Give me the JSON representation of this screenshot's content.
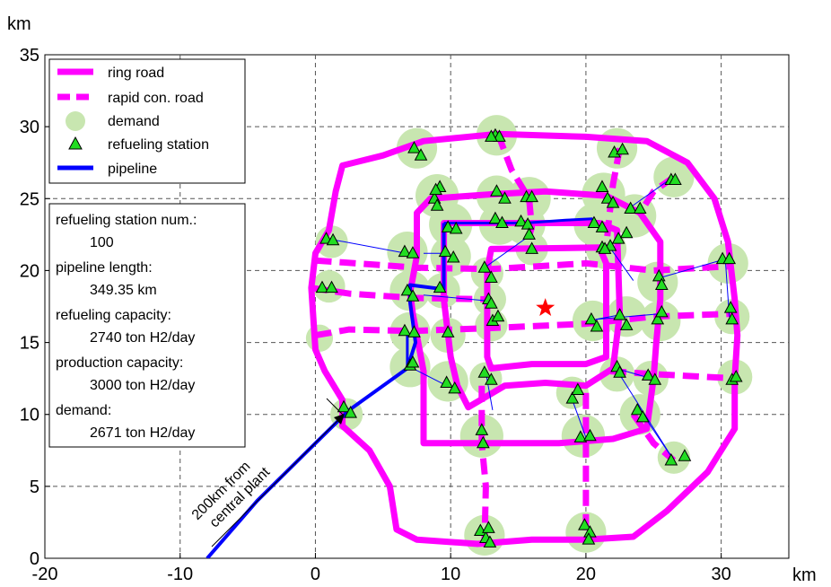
{
  "chart_data": {
    "type": "map-network",
    "xlim": [
      -20,
      35
    ],
    "ylim": [
      0,
      35
    ],
    "x_ticks": [
      -20,
      -10,
      0,
      10,
      20,
      30
    ],
    "y_ticks": [
      0,
      5,
      10,
      15,
      20,
      25,
      30,
      35
    ],
    "x_unit": "km",
    "y_unit": "km",
    "grid": true,
    "legend": {
      "placement": "top-left",
      "entries": [
        {
          "label": "ring road",
          "style": "solid-magenta"
        },
        {
          "label": "rapid con. road",
          "style": "dashed-magenta"
        },
        {
          "label": "demand",
          "style": "green-circle"
        },
        {
          "label": "refueling station",
          "style": "green-triangle"
        },
        {
          "label": "pipeline",
          "style": "blue-line"
        }
      ]
    },
    "info_box": [
      {
        "label": "refueling station num.:",
        "value": "100"
      },
      {
        "label": "pipeline length:",
        "value": "349.35 km"
      },
      {
        "label": "refueling capacity:",
        "value": "2740 ton H2/day"
      },
      {
        "label": "production capacity:",
        "value": "3000 ton H2/day"
      },
      {
        "label": "demand:",
        "value": "2671 ton H2/day"
      }
    ],
    "annotation": {
      "lines": [
        "200km from",
        "central plant"
      ]
    },
    "central_point": {
      "x": 17,
      "y": 17.4,
      "color": "#ff0000"
    },
    "colors": {
      "road": "#ff00ff",
      "demand": "#c8e6b0",
      "station": "#22dd22",
      "pipeline": "#0000ff",
      "grid": "#555555",
      "star": "#ff0000"
    },
    "ring_roads": [
      [
        [
          0,
          21.2
        ],
        [
          -0.3,
          18.8
        ],
        [
          0,
          14.5
        ],
        [
          0.7,
          13
        ],
        [
          2,
          11
        ],
        [
          2,
          9.2
        ],
        [
          4,
          7.5
        ],
        [
          5.5,
          5
        ],
        [
          6,
          2
        ],
        [
          7.5,
          1.3
        ],
        [
          12,
          1
        ],
        [
          16,
          1.3
        ],
        [
          20,
          1.3
        ],
        [
          23.5,
          1.5
        ],
        [
          26,
          3.3
        ],
        [
          29,
          6
        ],
        [
          31,
          9
        ],
        [
          31,
          12.5
        ],
        [
          31.2,
          15.5
        ],
        [
          31,
          18
        ],
        [
          30.5,
          22
        ],
        [
          29.5,
          25
        ],
        [
          27.5,
          27.5
        ],
        [
          24.5,
          29
        ],
        [
          20,
          29.3
        ],
        [
          13.5,
          29.5
        ],
        [
          8,
          29
        ],
        [
          5,
          28
        ],
        [
          2,
          27.3
        ],
        [
          1.5,
          25.5
        ],
        [
          1,
          22.8
        ],
        [
          0,
          21.2
        ]
      ],
      [
        [
          13,
          25.3
        ],
        [
          17,
          25.5
        ],
        [
          21.5,
          25.2
        ],
        [
          24,
          24
        ],
        [
          25.5,
          22
        ],
        [
          25.5,
          18
        ],
        [
          25.2,
          15
        ],
        [
          25,
          12.5
        ],
        [
          24.5,
          9
        ],
        [
          22,
          8.3
        ],
        [
          18,
          8
        ],
        [
          15,
          8
        ],
        [
          12,
          8
        ],
        [
          8,
          8
        ],
        [
          8,
          13
        ],
        [
          7.2,
          17
        ],
        [
          7,
          18.5
        ],
        [
          7.5,
          21
        ],
        [
          7.5,
          24
        ],
        [
          8.5,
          25
        ],
        [
          13,
          25.3
        ]
      ],
      [
        [
          9.5,
          23.3
        ],
        [
          17,
          23.3
        ],
        [
          21,
          23.3
        ],
        [
          22.3,
          22.8
        ],
        [
          22.5,
          17
        ],
        [
          22,
          13.2
        ],
        [
          20,
          12
        ],
        [
          17,
          12.2
        ],
        [
          14,
          12
        ],
        [
          11.3,
          10.5
        ],
        [
          10.5,
          12
        ],
        [
          10,
          14
        ],
        [
          9.5,
          18
        ],
        [
          9.5,
          23.3
        ]
      ],
      [
        [
          13,
          21.5
        ],
        [
          21,
          21.6
        ],
        [
          21.5,
          20.5
        ],
        [
          21.5,
          14
        ],
        [
          20,
          13.5
        ],
        [
          16,
          13.5
        ],
        [
          13,
          13.2
        ],
        [
          12.7,
          14
        ],
        [
          12.7,
          20
        ],
        [
          13,
          21.5
        ]
      ]
    ],
    "rapid_roads": [
      [
        [
          0,
          20.7
        ],
        [
          7.5,
          20.2
        ],
        [
          13,
          20.1
        ],
        [
          20,
          20.5
        ],
        [
          25,
          20
        ],
        [
          30.8,
          20.3
        ]
      ],
      [
        [
          -0.3,
          18.8
        ],
        [
          2.5,
          18.4
        ],
        [
          7.2,
          18.1
        ],
        [
          12.8,
          18
        ]
      ],
      [
        [
          0,
          15.5
        ],
        [
          2.5,
          15.9
        ],
        [
          7.2,
          15.8
        ],
        [
          13,
          16
        ],
        [
          20,
          16.3
        ],
        [
          25,
          16.8
        ],
        [
          31,
          17
        ]
      ],
      [
        [
          21.8,
          13
        ],
        [
          25,
          12.8
        ],
        [
          31,
          12.5
        ]
      ],
      [
        [
          13.5,
          29.5
        ],
        [
          14.5,
          27
        ],
        [
          15.8,
          25
        ],
        [
          16,
          23
        ],
        [
          15.5,
          21.5
        ]
      ],
      [
        [
          22.5,
          28.5
        ],
        [
          22,
          26
        ],
        [
          21.7,
          23.5
        ],
        [
          21.5,
          21.6
        ]
      ],
      [
        [
          26.5,
          26.5
        ],
        [
          25,
          25.5
        ],
        [
          24,
          24
        ]
      ],
      [
        [
          23.5,
          10
        ],
        [
          25,
          8
        ],
        [
          26.5,
          6.8
        ]
      ],
      [
        [
          20,
          11.5
        ],
        [
          20,
          8
        ],
        [
          20,
          4
        ],
        [
          20,
          1.5
        ]
      ],
      [
        [
          12.3,
          12
        ],
        [
          12.3,
          8
        ],
        [
          12.6,
          5
        ],
        [
          12.5,
          1
        ]
      ]
    ],
    "pipeline": [
      [
        [
          -8,
          0
        ],
        [
          -4.3,
          4
        ],
        [
          0,
          8
        ],
        [
          2.5,
          10.3
        ],
        [
          6.8,
          13.2
        ],
        [
          7.4,
          15
        ],
        [
          7,
          17.8
        ],
        [
          7,
          19
        ],
        [
          9.5,
          18.7
        ],
        [
          9.5,
          23.3
        ]
      ],
      [
        [
          9.5,
          23.3
        ],
        [
          15.5,
          23.3
        ],
        [
          18.5,
          23.5
        ],
        [
          20.5,
          23.6
        ]
      ],
      [
        [
          6.8,
          13.2
        ],
        [
          6.8,
          15.6
        ]
      ]
    ],
    "connector_links": [
      [
        [
          1,
          22.2
        ],
        [
          6.7,
          21.2
        ]
      ],
      [
        [
          8,
          18.3
        ],
        [
          12.7,
          17.9
        ]
      ],
      [
        [
          7.2,
          13.2
        ],
        [
          9.7,
          12
        ]
      ],
      [
        [
          20.7,
          16.6
        ],
        [
          25.6,
          17
        ]
      ],
      [
        [
          23.3,
          24.4
        ],
        [
          26.3,
          26.4
        ]
      ],
      [
        [
          21.7,
          21.7
        ],
        [
          23.5,
          19.3
        ]
      ],
      [
        [
          22.2,
          13.2
        ],
        [
          24.8,
          12.5
        ]
      ],
      [
        [
          22.2,
          13.2
        ],
        [
          26.5,
          6.8
        ]
      ],
      [
        [
          20.7,
          16.6
        ],
        [
          22.4,
          16.9
        ]
      ],
      [
        [
          12.5,
          20.2
        ],
        [
          15.8,
          22.4
        ]
      ],
      [
        [
          30.3,
          20.8
        ],
        [
          30.6,
          16.8
        ]
      ],
      [
        [
          24,
          10.3
        ],
        [
          26.5,
          6.8
        ]
      ],
      [
        [
          19,
          11
        ],
        [
          20,
          8.4
        ]
      ],
      [
        [
          25.5,
          19.5
        ],
        [
          30.3,
          20.8
        ]
      ],
      [
        [
          12.6,
          12.9
        ],
        [
          13.1,
          10.3
        ]
      ],
      [
        [
          8,
          21.2
        ],
        [
          9.7,
          21.2
        ]
      ]
    ],
    "demand_points": [
      {
        "x": 7.5,
        "y": 28.5,
        "r": 1.5
      },
      {
        "x": 13.4,
        "y": 29.4,
        "r": 1.5
      },
      {
        "x": 22.3,
        "y": 28.5,
        "r": 1.5
      },
      {
        "x": 26.5,
        "y": 26.5,
        "r": 1.5
      },
      {
        "x": 9,
        "y": 25.2,
        "r": 1.6
      },
      {
        "x": 13.4,
        "y": 25.2,
        "r": 1.5
      },
      {
        "x": 15.8,
        "y": 25,
        "r": 1.6
      },
      {
        "x": 21.3,
        "y": 25.3,
        "r": 1.6
      },
      {
        "x": 10,
        "y": 23.2,
        "r": 1.6
      },
      {
        "x": 13.6,
        "y": 23.2,
        "r": 1.5
      },
      {
        "x": 15.5,
        "y": 23.2,
        "r": 1.5
      },
      {
        "x": 20.7,
        "y": 23.2,
        "r": 1.6
      },
      {
        "x": 23.6,
        "y": 23.8,
        "r": 1.6
      },
      {
        "x": 1.2,
        "y": 22,
        "r": 1.2
      },
      {
        "x": 6.8,
        "y": 21.3,
        "r": 1.5
      },
      {
        "x": 10,
        "y": 21,
        "r": 1.5
      },
      {
        "x": 16,
        "y": 21.5,
        "r": 1.2
      },
      {
        "x": 21.5,
        "y": 21.5,
        "r": 1.5
      },
      {
        "x": 30.5,
        "y": 20.5,
        "r": 1.5
      },
      {
        "x": 12.7,
        "y": 19.8,
        "r": 1.2
      },
      {
        "x": 25.3,
        "y": 19.2,
        "r": 1.5
      },
      {
        "x": 1,
        "y": 18.9,
        "r": 1.2
      },
      {
        "x": 7,
        "y": 18.6,
        "r": 1.5
      },
      {
        "x": 9.4,
        "y": 18.6,
        "r": 1.3
      },
      {
        "x": 12.9,
        "y": 18,
        "r": 1.2
      },
      {
        "x": 20.5,
        "y": 16.5,
        "r": 1.5
      },
      {
        "x": 23,
        "y": 16.8,
        "r": 1.5
      },
      {
        "x": 25.5,
        "y": 16.5,
        "r": 1.5
      },
      {
        "x": 30.8,
        "y": 16.8,
        "r": 1.3
      },
      {
        "x": 7,
        "y": 15.7,
        "r": 1.5
      },
      {
        "x": 9.8,
        "y": 15.5,
        "r": 1.3
      },
      {
        "x": 13,
        "y": 16.2,
        "r": 1.2
      },
      {
        "x": 0.3,
        "y": 15.3,
        "r": 1
      },
      {
        "x": 7,
        "y": 13.3,
        "r": 1.5
      },
      {
        "x": 9.8,
        "y": 12.3,
        "r": 1.5
      },
      {
        "x": 12.6,
        "y": 12.5,
        "r": 1.2
      },
      {
        "x": 19,
        "y": 11.5,
        "r": 1.2
      },
      {
        "x": 22.3,
        "y": 12.8,
        "r": 1.3
      },
      {
        "x": 24.8,
        "y": 12.5,
        "r": 1.3
      },
      {
        "x": 31,
        "y": 12.6,
        "r": 1.3
      },
      {
        "x": 2.3,
        "y": 10,
        "r": 1.2
      },
      {
        "x": 12.3,
        "y": 8.5,
        "r": 1.6
      },
      {
        "x": 19.8,
        "y": 8.5,
        "r": 1.6
      },
      {
        "x": 24,
        "y": 10,
        "r": 1.5
      },
      {
        "x": 26.5,
        "y": 7,
        "r": 1.2
      },
      {
        "x": 12.5,
        "y": 1.6,
        "r": 1.5
      },
      {
        "x": 20,
        "y": 1.8,
        "r": 1.5
      }
    ],
    "stations": [
      [
        7.3,
        28.5
      ],
      [
        7.8,
        28
      ],
      [
        13.3,
        29.4
      ],
      [
        13.6,
        29.3
      ],
      [
        22.1,
        28.2
      ],
      [
        22.7,
        28.4
      ],
      [
        26.3,
        26.3
      ],
      [
        26.6,
        26.3
      ],
      [
        9.2,
        25.8
      ],
      [
        8.8,
        25
      ],
      [
        9,
        24.5
      ],
      [
        13.4,
        25.5
      ],
      [
        14,
        25
      ],
      [
        15.6,
        25.1
      ],
      [
        16,
        25.1
      ],
      [
        21.2,
        25.8
      ],
      [
        21.6,
        25
      ],
      [
        22,
        24.7
      ],
      [
        9.8,
        23
      ],
      [
        10.4,
        22.9
      ],
      [
        13.3,
        23.6
      ],
      [
        13.8,
        23.3
      ],
      [
        15.2,
        23.4
      ],
      [
        15.7,
        23.2
      ],
      [
        20.6,
        23.3
      ],
      [
        21.2,
        23
      ],
      [
        23.3,
        24.3
      ],
      [
        24,
        24.3
      ],
      [
        0.8,
        22.2
      ],
      [
        1.3,
        22.1
      ],
      [
        6.6,
        21.3
      ],
      [
        7.2,
        21.2
      ],
      [
        9.6,
        21.3
      ],
      [
        10.2,
        20.9
      ],
      [
        15.8,
        22.5
      ],
      [
        16,
        21.5
      ],
      [
        21.2,
        21.6
      ],
      [
        21.8,
        21.7
      ],
      [
        22.4,
        22.2
      ],
      [
        23,
        22.6
      ],
      [
        30.1,
        20.8
      ],
      [
        30.6,
        20.8
      ],
      [
        12.5,
        20.2
      ],
      [
        13,
        19.5
      ],
      [
        25.4,
        19.6
      ],
      [
        25.6,
        19
      ],
      [
        0.5,
        18.8
      ],
      [
        1.2,
        18.8
      ],
      [
        6.8,
        18.6
      ],
      [
        7.2,
        18.2
      ],
      [
        9.2,
        18.8
      ],
      [
        12.8,
        18
      ],
      [
        13,
        17.7
      ],
      [
        20.4,
        16.6
      ],
      [
        20.8,
        16.1
      ],
      [
        22.5,
        16.9
      ],
      [
        23,
        16.2
      ],
      [
        25.3,
        16.6
      ],
      [
        25.6,
        17.1
      ],
      [
        30.7,
        17.4
      ],
      [
        30.8,
        16.6
      ],
      [
        6.6,
        15.8
      ],
      [
        7.3,
        15.7
      ],
      [
        9.8,
        15.7
      ],
      [
        13.1,
        16.5
      ],
      [
        13.5,
        16.8
      ],
      [
        7,
        13.4
      ],
      [
        7.2,
        13.6
      ],
      [
        9.7,
        12.2
      ],
      [
        10.3,
        11.8
      ],
      [
        12.5,
        12.9
      ],
      [
        13,
        12.4
      ],
      [
        19,
        11.1
      ],
      [
        19.4,
        11.7
      ],
      [
        22.3,
        13.3
      ],
      [
        22.5,
        12.9
      ],
      [
        24.6,
        12.7
      ],
      [
        25.1,
        12.4
      ],
      [
        30.8,
        12.4
      ],
      [
        31.1,
        12.6
      ],
      [
        2.1,
        10.5
      ],
      [
        2.6,
        10.1
      ],
      [
        12.3,
        8.9
      ],
      [
        12.4,
        8
      ],
      [
        19.6,
        8.4
      ],
      [
        20.3,
        8.5
      ],
      [
        23.8,
        10.3
      ],
      [
        24.2,
        9.8
      ],
      [
        26.3,
        6.8
      ],
      [
        27.3,
        7.1
      ],
      [
        12.2,
        1.9
      ],
      [
        12.6,
        1.4
      ],
      [
        12.8,
        2.1
      ],
      [
        19.9,
        2.3
      ],
      [
        20.3,
        1.8
      ],
      [
        12.9,
        1.1
      ],
      [
        20.2,
        1.3
      ],
      [
        13,
        29.3
      ],
      [
        8.9,
        25.6
      ],
      [
        21.4,
        21.5
      ]
    ]
  }
}
